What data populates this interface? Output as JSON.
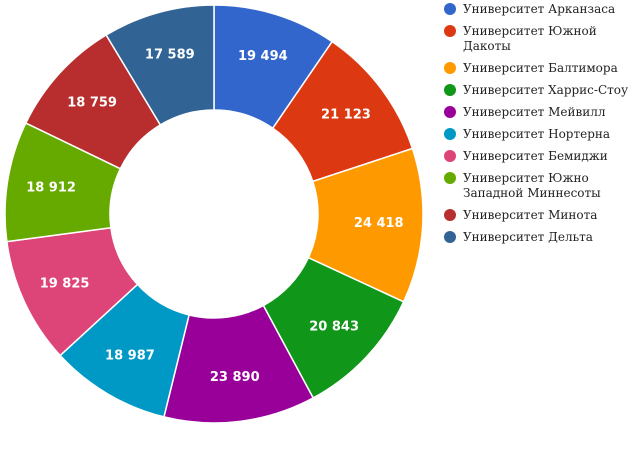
{
  "chart_data": {
    "type": "pie",
    "donut": true,
    "labels": [
      "Университет Арканзаса",
      "Университет Южной Дакоты",
      "Университет Балтимора",
      "Университет Харрис-Стоу",
      "Университет Мейвилл",
      "Университет Нортерна",
      "Университет Бемиджи",
      "Университет Южно Западной Миннесоты",
      "Университет Минота",
      "Университет Дельта"
    ],
    "values": [
      19494,
      21123,
      24418,
      20843,
      23890,
      18987,
      19825,
      18912,
      18759,
      17589
    ],
    "value_labels": [
      "19 494",
      "21 123",
      "24 418",
      "20 843",
      "23 890",
      "18 987",
      "19 825",
      "18 912",
      "18 759",
      "17 589"
    ],
    "colors": [
      "#3366cc",
      "#dc3912",
      "#ff9900",
      "#109618",
      "#990099",
      "#0099c6",
      "#dd4477",
      "#66aa00",
      "#b82e2e",
      "#316395"
    ],
    "legend_position": "right"
  }
}
